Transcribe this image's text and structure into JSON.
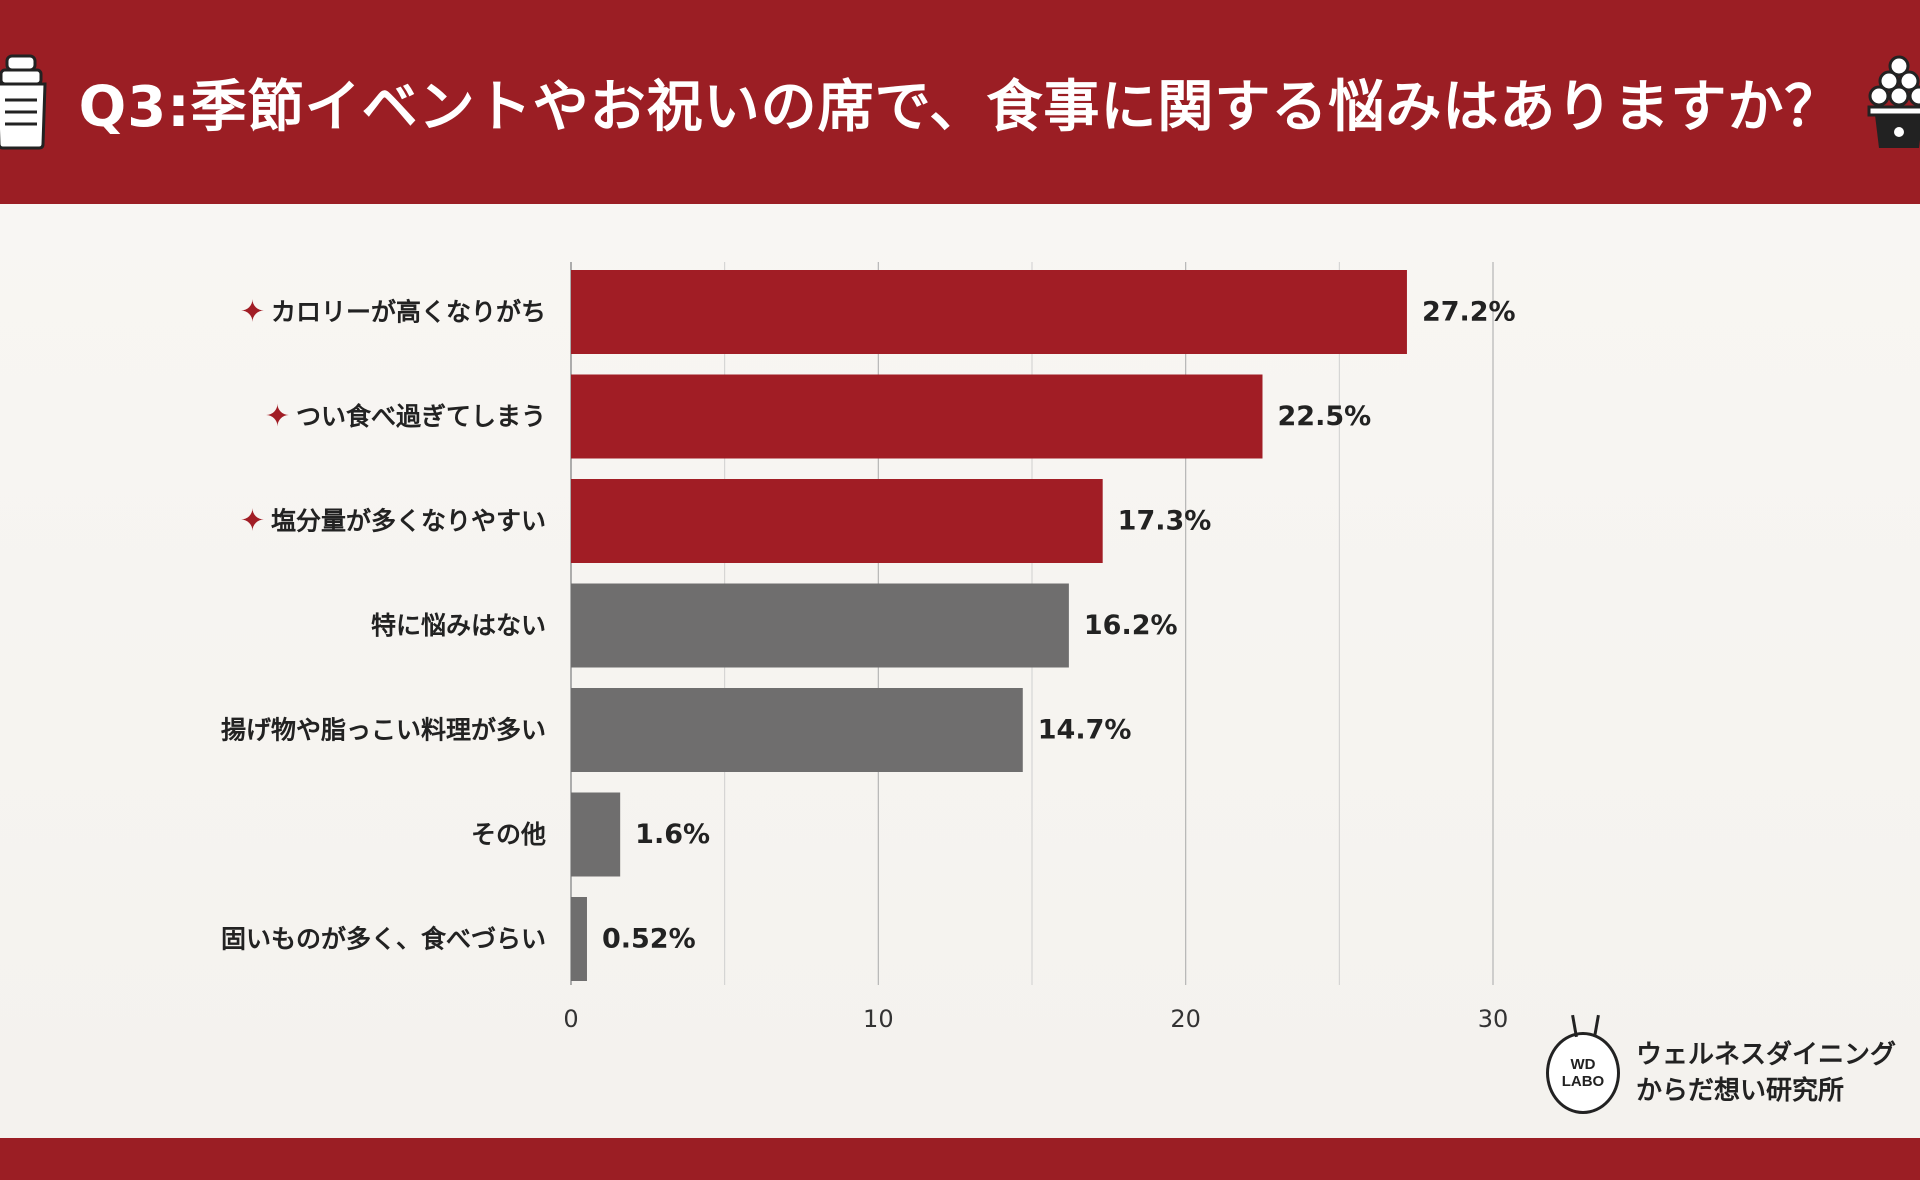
{
  "colors": {
    "header_bg": "#9b1e24",
    "highlight_bar": "#a11d25",
    "normal_bar": "#6f6e6e",
    "grid": "#cfcfcf",
    "star": "#a11d25"
  },
  "header": {
    "title": "Q3:季節イベントやお祝いの席で、食事に関する悩みはありますか？",
    "left_icon": "cocktail-shaker-icon",
    "right_icon": "tsukimi-dango-icon"
  },
  "chart_data": {
    "type": "bar",
    "orientation": "horizontal",
    "categories": [
      "カロリーが高くなりがち",
      "つい食べ過ぎてしまう",
      "塩分量が多くなりやすい",
      "特に悩みはない",
      "揚げ物や脂っこい料理が多い",
      "その他",
      "固いものが多く、食べづらい"
    ],
    "values": [
      27.2,
      22.5,
      17.3,
      16.2,
      14.7,
      1.6,
      0.52
    ],
    "value_labels": [
      "27.2%",
      "22.5%",
      "17.3%",
      "16.2%",
      "14.7%",
      "1.6%",
      "0.52%"
    ],
    "highlighted": [
      true,
      true,
      true,
      false,
      false,
      false,
      false
    ],
    "marker_symbol": "✦",
    "xlim": [
      0,
      30
    ],
    "ticks": [
      0,
      10,
      20,
      30
    ],
    "tick_labels": [
      "0",
      "10",
      "20",
      "30"
    ],
    "minor_gridlines": [
      5,
      15,
      25
    ],
    "grid": true,
    "title": "",
    "xlabel": "",
    "ylabel": ""
  },
  "logo": {
    "mark_line1": "WD",
    "mark_line2": "LABO",
    "name_line1": "ウェルネスダイニング",
    "name_line2": "からだ想い研究所"
  }
}
